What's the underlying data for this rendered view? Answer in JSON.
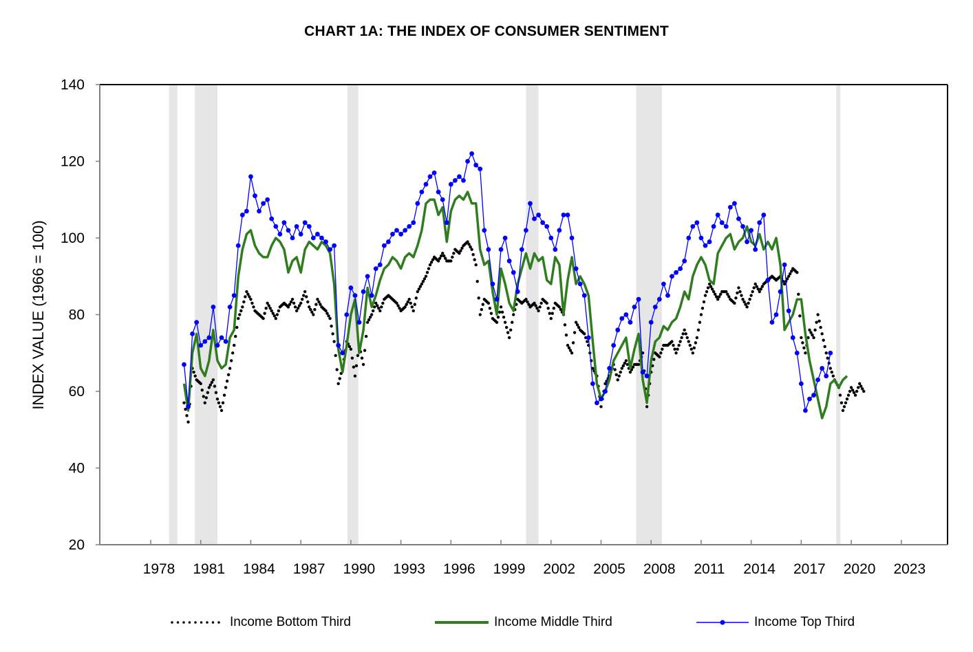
{
  "chart_data": {
    "type": "line",
    "title": "CHART 1A: THE INDEX OF CONSUMER SENTIMENT",
    "xlabel": "",
    "ylabel": "INDEX VALUE (1966 = 100)",
    "ylim": [
      20,
      140
    ],
    "yticks": [
      20,
      40,
      60,
      80,
      100,
      120,
      140
    ],
    "xlim": [
      1975.0,
      2025.8
    ],
    "xticks": [
      1978,
      1981,
      1984,
      1987,
      1990,
      1993,
      1996,
      1999,
      2002,
      2005,
      2008,
      2011,
      2014,
      2017,
      2020,
      2023
    ],
    "grid": false,
    "legend_position": "bottom",
    "recession_shading": [
      {
        "start": 1979.1,
        "end": 1979.6
      },
      {
        "start": 1980.65,
        "end": 1982.0
      },
      {
        "start": 1989.8,
        "end": 1990.45
      },
      {
        "start": 2000.5,
        "end": 2001.25
      },
      {
        "start": 2007.1,
        "end": 2008.65
      },
      {
        "start": 2019.1,
        "end": 2019.35
      }
    ],
    "x_start": 1980.0,
    "x_step": 0.25,
    "series": [
      {
        "name": "Income Bottom Third",
        "color": "#000000",
        "style": "dotted",
        "values": [
          57,
          52,
          66,
          63,
          62,
          57,
          61,
          63,
          58,
          55,
          61,
          66,
          72,
          79,
          82,
          86,
          84,
          81,
          80,
          79,
          83,
          81,
          79,
          82,
          83,
          82,
          84,
          81,
          83,
          86,
          82,
          80,
          84,
          82,
          81,
          79,
          73,
          62,
          66,
          73,
          71,
          64,
          72,
          67,
          78,
          80,
          83,
          81,
          84,
          85,
          84,
          83,
          81,
          82,
          84,
          81,
          86,
          88,
          90,
          93,
          95,
          94,
          96,
          94,
          94,
          97,
          96,
          98,
          99,
          97,
          93,
          80,
          84,
          83,
          79,
          78,
          82,
          78,
          74,
          80,
          84,
          83,
          84,
          82,
          83,
          81,
          84,
          83,
          79,
          83,
          82,
          80,
          72,
          70,
          78,
          76,
          75,
          72,
          66,
          64,
          56,
          62,
          64,
          67,
          63,
          66,
          68,
          65,
          67,
          67,
          70,
          56,
          65,
          70,
          69,
          72,
          72,
          73,
          70,
          73,
          76,
          73,
          70,
          74,
          80,
          85,
          88,
          86,
          84,
          86,
          86,
          84,
          83,
          87,
          84,
          82,
          85,
          88,
          86,
          88,
          89,
          90,
          89,
          90,
          88,
          90,
          92,
          91,
          74,
          70,
          76,
          74,
          80,
          75,
          70,
          66,
          63,
          61,
          55,
          58,
          61,
          59,
          62,
          60
        ]
      },
      {
        "name": "Income Middle Third",
        "color": "#2f7d1f",
        "style": "solid",
        "values": [
          62,
          55,
          70,
          75,
          66,
          64,
          68,
          76,
          68,
          66,
          67,
          74,
          76,
          90,
          97,
          101,
          102,
          98,
          96,
          95,
          95,
          98,
          100,
          99,
          97,
          91,
          94,
          95,
          91,
          97,
          99,
          98,
          97,
          99,
          98,
          96,
          88,
          71,
          65,
          72,
          80,
          84,
          70,
          76,
          87,
          82,
          85,
          89,
          92,
          93,
          95,
          94,
          92,
          95,
          96,
          95,
          98,
          102,
          109,
          110,
          110,
          106,
          108,
          99,
          107,
          110,
          111,
          110,
          112,
          109,
          109,
          97,
          93,
          94,
          86,
          80,
          92,
          88,
          83,
          81,
          88,
          92,
          96,
          92,
          96,
          94,
          95,
          89,
          88,
          95,
          93,
          80,
          89,
          95,
          88,
          90,
          88,
          85,
          73,
          62,
          58,
          60,
          63,
          68,
          70,
          72,
          74,
          66,
          71,
          75,
          63,
          57,
          68,
          73,
          74,
          77,
          76,
          78,
          79,
          82,
          86,
          84,
          90,
          93,
          95,
          93,
          89,
          88,
          96,
          98,
          100,
          101,
          97,
          99,
          100,
          103,
          99,
          98,
          101,
          97,
          99,
          97,
          100,
          93,
          76,
          78,
          80,
          84,
          84,
          75,
          68,
          63,
          58,
          53,
          56,
          62,
          63,
          61,
          63,
          64
        ]
      },
      {
        "name": "Income Top Third",
        "color": "#0000ff",
        "style": "solid-markers",
        "values": [
          67,
          56,
          75,
          78,
          72,
          73,
          74,
          82,
          72,
          74,
          73,
          82,
          85,
          98,
          106,
          107,
          116,
          111,
          107,
          109,
          110,
          105,
          103,
          101,
          104,
          102,
          100,
          103,
          101,
          104,
          103,
          100,
          101,
          100,
          99,
          97,
          98,
          72,
          70,
          80,
          87,
          85,
          78,
          86,
          90,
          85,
          92,
          93,
          98,
          99,
          101,
          102,
          101,
          102,
          103,
          104,
          109,
          112,
          114,
          116,
          117,
          112,
          110,
          104,
          114,
          115,
          116,
          115,
          120,
          122,
          119,
          118,
          102,
          97,
          88,
          84,
          97,
          100,
          94,
          91,
          86,
          97,
          102,
          109,
          105,
          106,
          104,
          103,
          100,
          97,
          102,
          106,
          106,
          100,
          92,
          88,
          85,
          74,
          62,
          57,
          58,
          60,
          66,
          72,
          76,
          79,
          80,
          78,
          82,
          84,
          65,
          64,
          78,
          82,
          84,
          88,
          85,
          90,
          91,
          92,
          94,
          100,
          103,
          104,
          100,
          98,
          99,
          103,
          106,
          104,
          103,
          108,
          109,
          105,
          103,
          99,
          102,
          97,
          104,
          106,
          89,
          78,
          80,
          86,
          93,
          81,
          74,
          70,
          62,
          55,
          58,
          59,
          63,
          66,
          64,
          70
        ]
      }
    ]
  }
}
